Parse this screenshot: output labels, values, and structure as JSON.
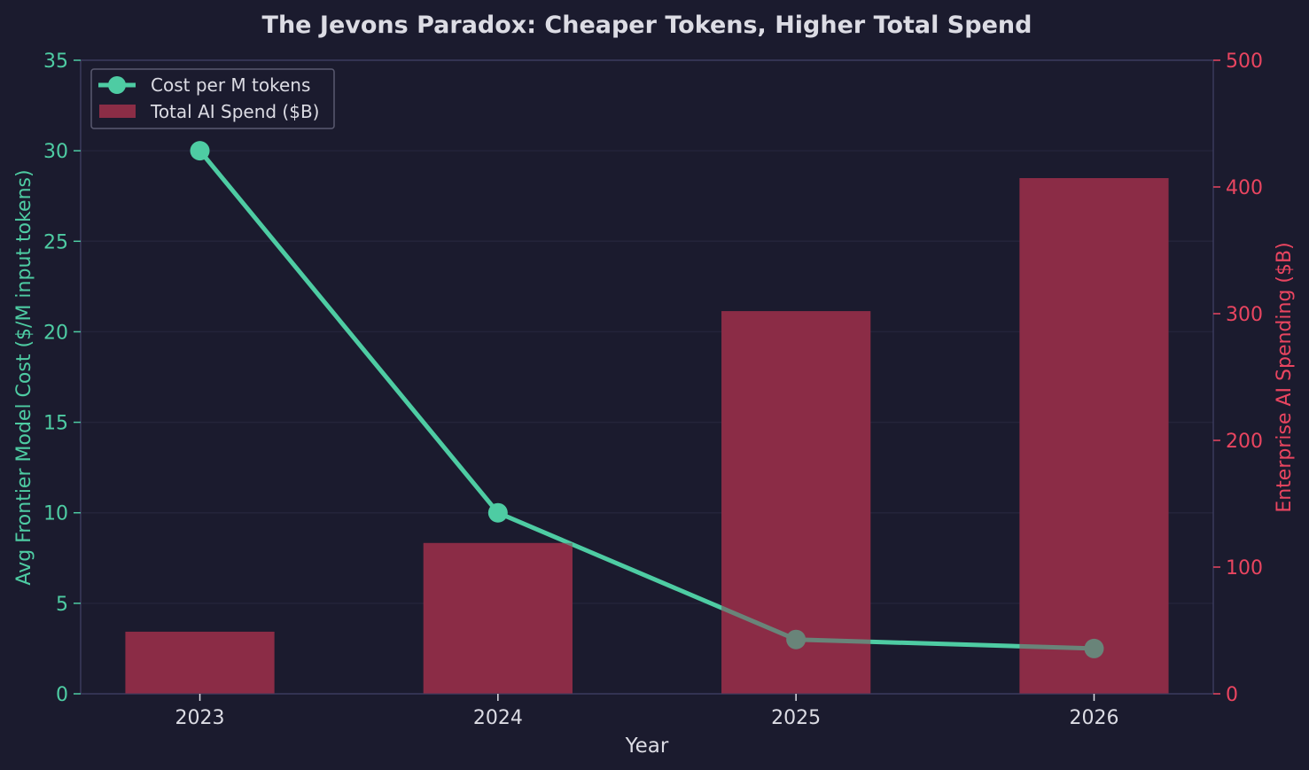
{
  "chart_data": {
    "type": "bar",
    "title": "The Jevons Paradox: Cheaper Tokens, Higher Total Spend",
    "xlabel": "Year",
    "ylabel_left": "Avg Frontier Model Cost ($/M input tokens)",
    "ylabel_right": "Enterprise AI Spending ($B)",
    "categories": [
      "2023",
      "2024",
      "2025",
      "2026"
    ],
    "ylim_left": [
      0,
      35
    ],
    "ylim_right": [
      0,
      500
    ],
    "yticks_left": [
      "0",
      "5",
      "10",
      "15",
      "20",
      "25",
      "30",
      "35"
    ],
    "yticks_right": [
      "0",
      "100",
      "200",
      "300",
      "400",
      "500"
    ],
    "grid": true,
    "legend_position": "top-left",
    "series": [
      {
        "name": "Cost per M tokens",
        "kind": "line",
        "axis": "left",
        "values": [
          30,
          10,
          3,
          2.5
        ]
      },
      {
        "name": "Total AI Spend ($B)",
        "kind": "bar",
        "axis": "right",
        "values": [
          49,
          119,
          302,
          407
        ]
      }
    ]
  },
  "colors": {
    "background": "#1b1b2e",
    "line": "#4ecca3",
    "bar": "#8b2d46",
    "left_axis": "#4ecca3",
    "right_axis": "#e94560",
    "text": "#dcdce4",
    "frame": "#3a3a5c",
    "grid": "#24243a"
  }
}
